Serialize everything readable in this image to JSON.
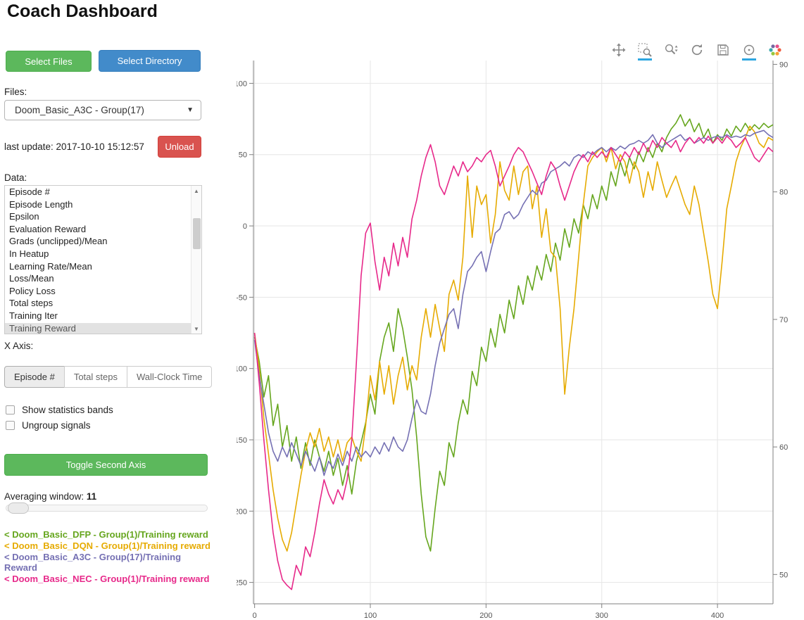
{
  "title": "Coach Dashboard",
  "icons": {
    "dropdown_caret": "▼",
    "scroll_up": "▲",
    "scroll_down": "▼"
  },
  "sidebar": {
    "select_files": "Select Files",
    "select_directory": "Select Directory",
    "files_label": "Files:",
    "files_value": "Doom_Basic_A3C - Group(17)",
    "last_update": "last update: 2017-10-10 15:12:57",
    "unload": "Unload",
    "data_label": "Data:",
    "data_list": {
      "items": [
        "Episode #",
        "Episode Length",
        "Epsilon",
        "Evaluation Reward",
        "Grads (unclipped)/Mean",
        "In Heatup",
        "Learning Rate/Mean",
        "Loss/Mean",
        "Policy Loss",
        "Total steps",
        "Training Iter",
        "Training Reward"
      ],
      "selected": "Training Reward"
    },
    "x_axis_label": "X Axis:",
    "x_axis": {
      "options": [
        "Episode #",
        "Total steps",
        "Wall-Clock Time"
      ],
      "selected": "Episode #"
    },
    "checkboxes": [
      {
        "label": "Show statistics bands",
        "checked": false
      },
      {
        "label": "Ungroup signals",
        "checked": false
      }
    ],
    "toggle_second_axis": "Toggle Second Axis",
    "averaging": {
      "label": "Averaging window:",
      "value": "11"
    },
    "legend": [
      {
        "label": "< Doom_Basic_DFP - Group(1)/Training reward",
        "color": "#66a61e"
      },
      {
        "label": "< Doom_Basic_DQN - Group(1)/Training reward",
        "color": "#e6ab02"
      },
      {
        "label": "< Doom_Basic_A3C - Group(17)/Training Reward",
        "color": "#7570b3"
      },
      {
        "label": "< Doom_Basic_NEC - Group(1)/Training reward",
        "color": "#e7298a"
      }
    ]
  },
  "toolbar": {
    "tools": [
      "pan",
      "box-zoom",
      "wheel-zoom",
      "reset",
      "save",
      "hover",
      "bokeh-logo"
    ],
    "active": [
      "box-zoom",
      "hover"
    ],
    "active_color": "#2da6e0"
  },
  "chart_data": {
    "type": "line",
    "title": "",
    "xlabel": "",
    "ylabel": "",
    "xlim": [
      -1,
      448
    ],
    "ylim": [
      -265,
      116
    ],
    "y2lim": [
      47.7,
      90.3
    ],
    "xticks": [
      0,
      100,
      200,
      300,
      400
    ],
    "yticks": [
      100,
      50,
      0,
      -50,
      -100,
      -150,
      -200,
      -250
    ],
    "y2ticks": [
      90,
      80,
      70,
      60,
      50
    ],
    "grid": true,
    "legend_position": "sidebar",
    "series": [
      {
        "name": "Doom_Basic_DFP - Group(1)/Training reward",
        "color": "#66a61e",
        "x_start": 0,
        "x_step": 4,
        "values": [
          -78,
          -95,
          -120,
          -105,
          -140,
          -125,
          -155,
          -140,
          -165,
          -148,
          -170,
          -152,
          -168,
          -150,
          -162,
          -172,
          -158,
          -175,
          -163,
          -182,
          -168,
          -188,
          -165,
          -152,
          -138,
          -118,
          -132,
          -95,
          -78,
          -68,
          -88,
          -58,
          -72,
          -92,
          -115,
          -148,
          -188,
          -218,
          -228,
          -198,
          -172,
          -182,
          -152,
          -162,
          -138,
          -122,
          -132,
          -102,
          -112,
          -85,
          -95,
          -72,
          -85,
          -62,
          -75,
          -52,
          -65,
          -42,
          -55,
          -35,
          -45,
          -28,
          -38,
          -20,
          -32,
          -12,
          -24,
          -2,
          -15,
          5,
          -5,
          15,
          5,
          22,
          12,
          28,
          18,
          38,
          28,
          45,
          35,
          48,
          40,
          52,
          45,
          55,
          48,
          58,
          52,
          62,
          68,
          72,
          78,
          70,
          75,
          66,
          72,
          62,
          68,
          58,
          64,
          60,
          68,
          63,
          70,
          66,
          72,
          67,
          71,
          68,
          72,
          69,
          71
        ]
      },
      {
        "name": "Doom_Basic_DQN - Group(1)/Training reward",
        "color": "#e6ab02",
        "x_start": 0,
        "x_step": 4,
        "values": [
          -75,
          -100,
          -135,
          -160,
          -185,
          -205,
          -220,
          -228,
          -215,
          -195,
          -175,
          -158,
          -145,
          -155,
          -142,
          -158,
          -148,
          -162,
          -150,
          -165,
          -152,
          -148,
          -158,
          -165,
          -140,
          -105,
          -122,
          -95,
          -118,
          -98,
          -125,
          -105,
          -92,
          -115,
          -98,
          -108,
          -78,
          -58,
          -78,
          -55,
          -72,
          -88,
          -48,
          -38,
          -52,
          -22,
          35,
          -8,
          28,
          15,
          22,
          -12,
          8,
          45,
          25,
          18,
          42,
          22,
          38,
          42,
          12,
          28,
          -8,
          12,
          -18,
          -22,
          -58,
          -118,
          -85,
          -58,
          -22,
          15,
          42,
          48,
          52,
          55,
          45,
          55,
          40,
          50,
          45,
          30,
          45,
          38,
          20,
          38,
          25,
          45,
          32,
          20,
          28,
          35,
          25,
          15,
          8,
          28,
          15,
          -5,
          -25,
          -48,
          -58,
          -25,
          12,
          28,
          45,
          55,
          62,
          70,
          66,
          58,
          55,
          62,
          60
        ]
      },
      {
        "name": "Doom_Basic_A3C - Group(17)/Training Reward",
        "color": "#7570b3",
        "x_start": 0,
        "x_step": 4,
        "values": [
          -80,
          -105,
          -125,
          -145,
          -158,
          -165,
          -155,
          -162,
          -152,
          -160,
          -168,
          -158,
          -165,
          -172,
          -162,
          -175,
          -165,
          -170,
          -160,
          -168,
          -158,
          -165,
          -155,
          -162,
          -158,
          -162,
          -155,
          -160,
          -152,
          -158,
          -148,
          -155,
          -158,
          -150,
          -135,
          -122,
          -130,
          -132,
          -118,
          -98,
          -82,
          -72,
          -62,
          -58,
          -72,
          -48,
          -32,
          -28,
          -22,
          -18,
          -32,
          -18,
          -5,
          -2,
          8,
          10,
          5,
          8,
          15,
          20,
          25,
          22,
          30,
          32,
          38,
          40,
          42,
          45,
          42,
          48,
          50,
          48,
          52,
          50,
          53,
          55,
          52,
          55,
          53,
          56,
          54,
          57,
          58,
          60,
          58,
          60,
          64,
          58,
          55,
          58,
          60,
          62,
          64,
          60,
          62,
          58,
          60,
          62,
          60,
          62,
          63,
          62,
          64,
          62,
          63,
          62,
          64,
          63,
          65,
          66,
          67,
          64,
          62
        ]
      },
      {
        "name": "Doom_Basic_NEC - Group(1)/Training reward",
        "color": "#e7298a",
        "x_start": 0,
        "x_step": 4,
        "values": [
          -75,
          -110,
          -150,
          -185,
          -215,
          -235,
          -248,
          -252,
          -255,
          -238,
          -245,
          -225,
          -232,
          -215,
          -195,
          -178,
          -188,
          -195,
          -185,
          -192,
          -178,
          -150,
          -95,
          -35,
          -5,
          2,
          -25,
          -45,
          -22,
          -35,
          -12,
          -28,
          -8,
          -22,
          5,
          18,
          35,
          48,
          57,
          45,
          28,
          22,
          32,
          42,
          35,
          45,
          38,
          42,
          48,
          45,
          50,
          53,
          42,
          28,
          35,
          42,
          50,
          55,
          52,
          45,
          38,
          30,
          22,
          35,
          45,
          40,
          28,
          18,
          28,
          38,
          45,
          50,
          45,
          52,
          48,
          52,
          48,
          55,
          50,
          45,
          52,
          48,
          55,
          50,
          58,
          52,
          60,
          55,
          62,
          58,
          55,
          60,
          52,
          58,
          62,
          58,
          62,
          58,
          63,
          58,
          62,
          58,
          63,
          60,
          55,
          58,
          62,
          55,
          48,
          45,
          50,
          55,
          52
        ]
      }
    ]
  }
}
